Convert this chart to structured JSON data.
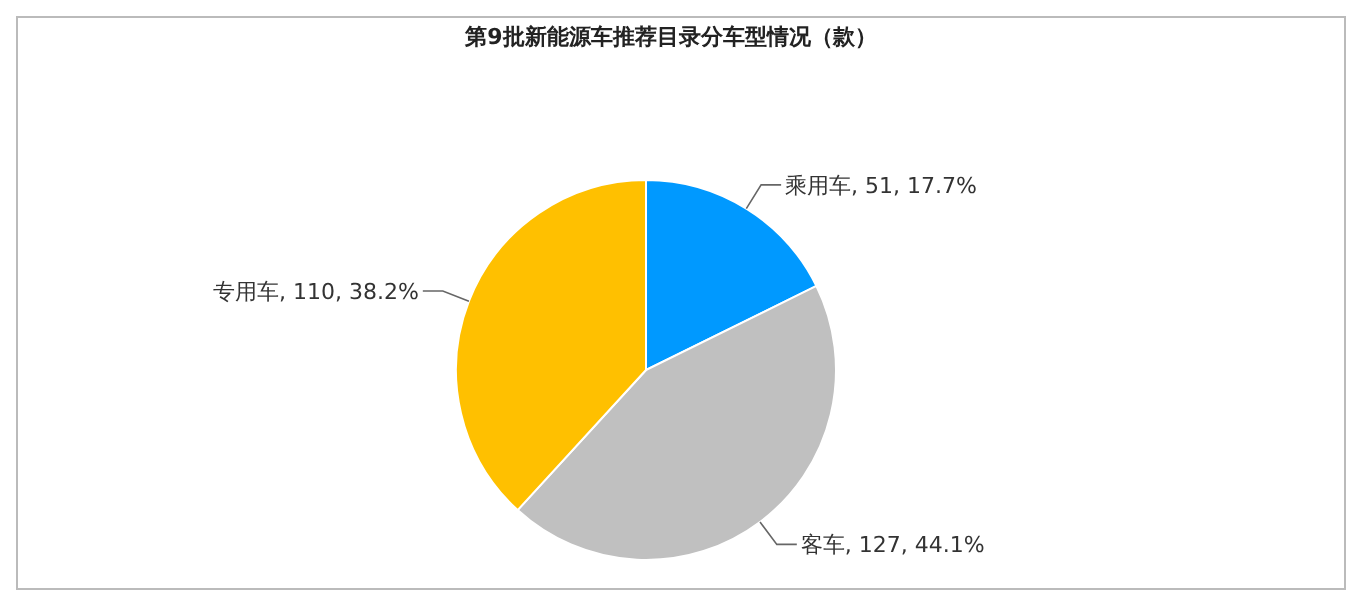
{
  "chart_data": {
    "type": "pie",
    "title": "第9批新能源车推荐目录分车型情况（款）",
    "categories": [
      "乘用车",
      "客车",
      "专用车"
    ],
    "values": [
      51,
      127,
      110
    ],
    "colors": [
      "#0099ff",
      "#c0c0c0",
      "#ffc000"
    ],
    "value_labels": [
      "51, 17.7%",
      "127, 44.1%",
      "110, 38.2%"
    ]
  }
}
